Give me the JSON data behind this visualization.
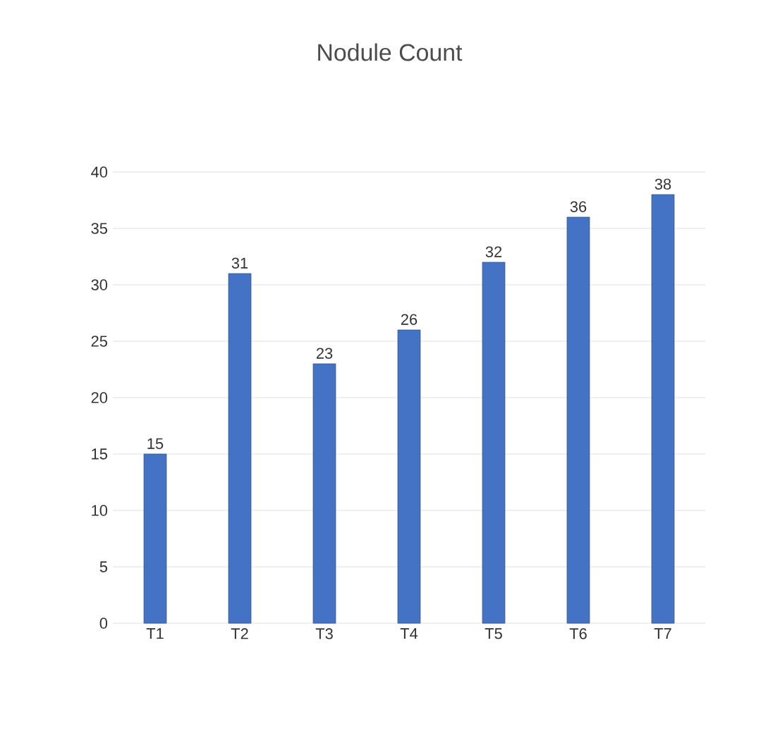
{
  "chart_data": {
    "type": "bar",
    "title": "Nodule Count",
    "categories": [
      "T1",
      "T2",
      "T3",
      "T4",
      "T5",
      "T6",
      "T7"
    ],
    "values": [
      15,
      31,
      23,
      26,
      32,
      36,
      38
    ],
    "color": "#4472c4",
    "ylim": [
      0,
      40
    ],
    "yticks": [
      0,
      5,
      10,
      15,
      20,
      25,
      30,
      35,
      40
    ],
    "grid": "y",
    "data_labels": true
  }
}
